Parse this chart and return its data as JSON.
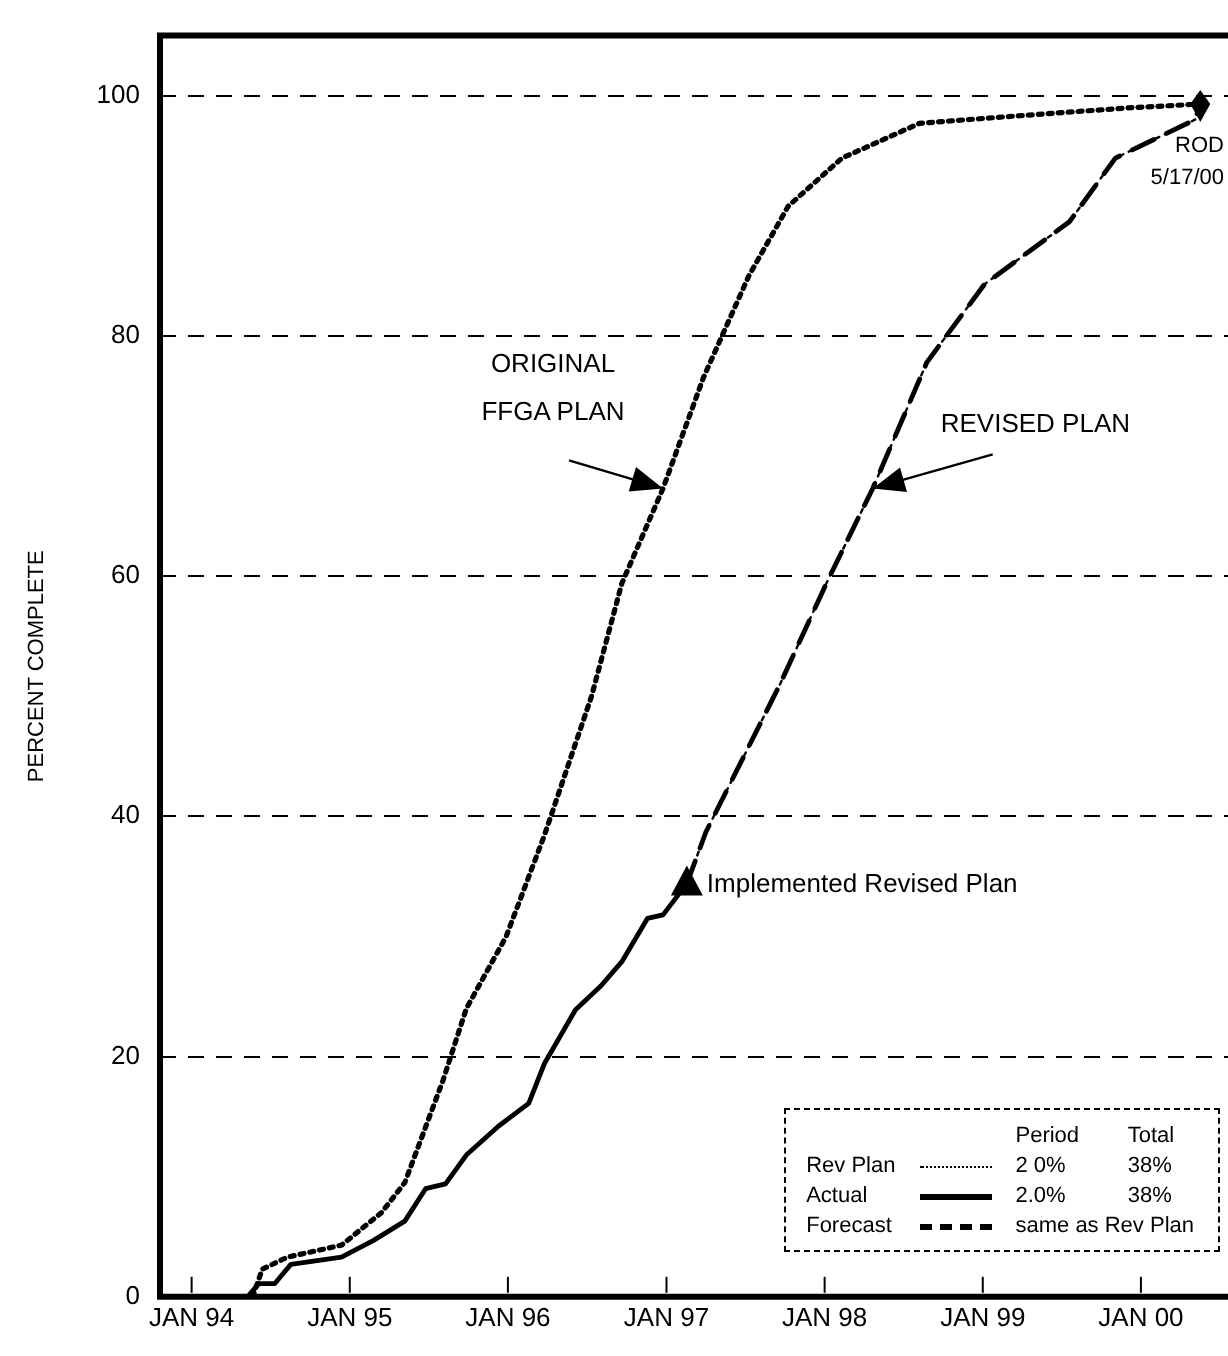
{
  "chart_data": {
    "type": "line",
    "ylabel": "PERCENT COMPLETE",
    "xlim": [
      "1993-10-20",
      "2000-07-20"
    ],
    "ylim": [
      0,
      105
    ],
    "xticks": [
      {
        "value": "1994-01-01",
        "label": "JAN 94"
      },
      {
        "value": "1995-01-01",
        "label": "JAN 95"
      },
      {
        "value": "1996-01-01",
        "label": "JAN 96"
      },
      {
        "value": "1997-01-01",
        "label": "JAN 97"
      },
      {
        "value": "1998-01-01",
        "label": "JAN 98"
      },
      {
        "value": "1999-01-01",
        "label": "JAN 99"
      },
      {
        "value": "2000-01-01",
        "label": "JAN 00"
      }
    ],
    "yticks": [
      0,
      20,
      40,
      60,
      80,
      100
    ],
    "grid": "y",
    "legend": "bottom right",
    "marker": "none",
    "series": [
      {
        "color": "#000000",
        "line_style": "dotted",
        "x": [
          "1994-05-22",
          "1994-06-13",
          "1994-08-10",
          "1994-12-13",
          "1995-03-15",
          "1995-05-08",
          "1995-08-04",
          "1995-09-27",
          "1995-12-28",
          "1996-03-25",
          "1996-07-12",
          "1996-09-20",
          "1996-12-24",
          "1997-03-27",
          "1997-07-10",
          "1997-10-09",
          "1998-02-10",
          "1998-08-08",
          "1999-03-15",
          "1999-12-10",
          "2000-05-17"
        ],
        "values": [
          0,
          2.3,
          3.3,
          4.3,
          7,
          9.5,
          18,
          24,
          30,
          38.4,
          50,
          59.4,
          67.3,
          76.5,
          85,
          90.8,
          94.8,
          97.7,
          98.3,
          99,
          99.3
        ]
      },
      {
        "name": "Rev Plan",
        "color": "#000000",
        "line_style": "dotted",
        "x": [
          "1997-02-17",
          "1997-04-02",
          "1997-09-20",
          "1998-01-05",
          "1998-04-22",
          "1998-08-25",
          "1999-01-05",
          "1999-07-20",
          "1999-11-03",
          "2000-05-05",
          "2000-05-17"
        ],
        "values": [
          34.4,
          38.7,
          51,
          59.4,
          67.3,
          77.8,
          84.3,
          89.5,
          94.8,
          98,
          99.3
        ]
      },
      {
        "name": "Actual",
        "color": "#000000",
        "line_style": "solid",
        "x": [
          "1994-05-10",
          "1994-06-05",
          "1994-07-12",
          "1994-08-18",
          "1994-12-13",
          "1995-02-25",
          "1995-05-08",
          "1995-06-25",
          "1995-08-10",
          "1995-09-27",
          "1995-12-10",
          "1996-02-18",
          "1996-03-25",
          "1996-06-05",
          "1996-08-03",
          "1996-09-20",
          "1996-11-18",
          "1996-12-24",
          "1997-02-17"
        ],
        "values": [
          0,
          1.1,
          1.1,
          2.7,
          3.3,
          4.7,
          6.3,
          9,
          9.4,
          11.8,
          14.2,
          16.1,
          19.4,
          23.9,
          25.9,
          27.9,
          31.5,
          31.8,
          34.4
        ]
      },
      {
        "name": "Forecast",
        "color": "#000000",
        "line_style": "dashed",
        "x": [
          "1997-02-17",
          "1997-04-02",
          "1997-09-20",
          "1998-01-05",
          "1998-04-22",
          "1998-08-25",
          "1999-01-05",
          "1999-07-20",
          "1999-11-03",
          "2000-05-05",
          "2000-05-17"
        ],
        "values": [
          34.4,
          38.7,
          51,
          59.4,
          67.3,
          77.8,
          84.3,
          89.5,
          94.8,
          98,
          99.3
        ]
      }
    ],
    "annotations": [
      {
        "text": "ORIGINAL\nFFGA PLAN",
        "x": "1996-12-24",
        "y": 67.3
      },
      {
        "text": "REVISED PLAN",
        "x": "1998-04-22",
        "y": 67.3
      },
      {
        "text": "Implemented Revised Plan",
        "x": "1997-02-17",
        "y": 34.4
      },
      {
        "text": "ROD\n5/17/00",
        "x": "2000-05-17",
        "y": 99.3
      },
      "Period",
      "Total",
      "2 0%",
      "38%",
      "2.0%",
      "38%",
      "same as Rev Plan"
    ]
  }
}
